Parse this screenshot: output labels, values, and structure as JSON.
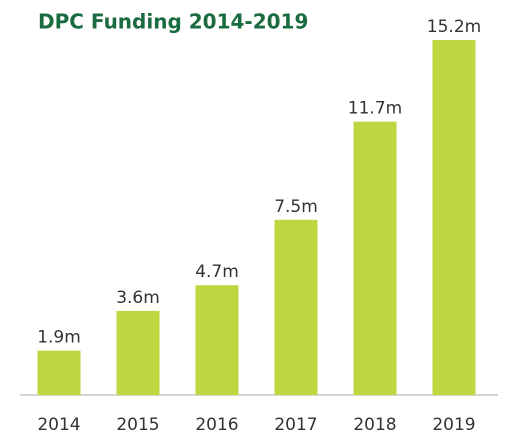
{
  "chart_data": {
    "type": "bar",
    "title": "DPC Funding 2014-2019",
    "categories": [
      "2014",
      "2015",
      "2016",
      "2017",
      "2018",
      "2019"
    ],
    "values": [
      1.9,
      3.6,
      4.7,
      7.5,
      11.7,
      15.2
    ],
    "value_labels": [
      "1.9m",
      "3.6m",
      "4.7m",
      "7.5m",
      "11.7m",
      "15.2m"
    ],
    "color": "#bfd641"
  }
}
